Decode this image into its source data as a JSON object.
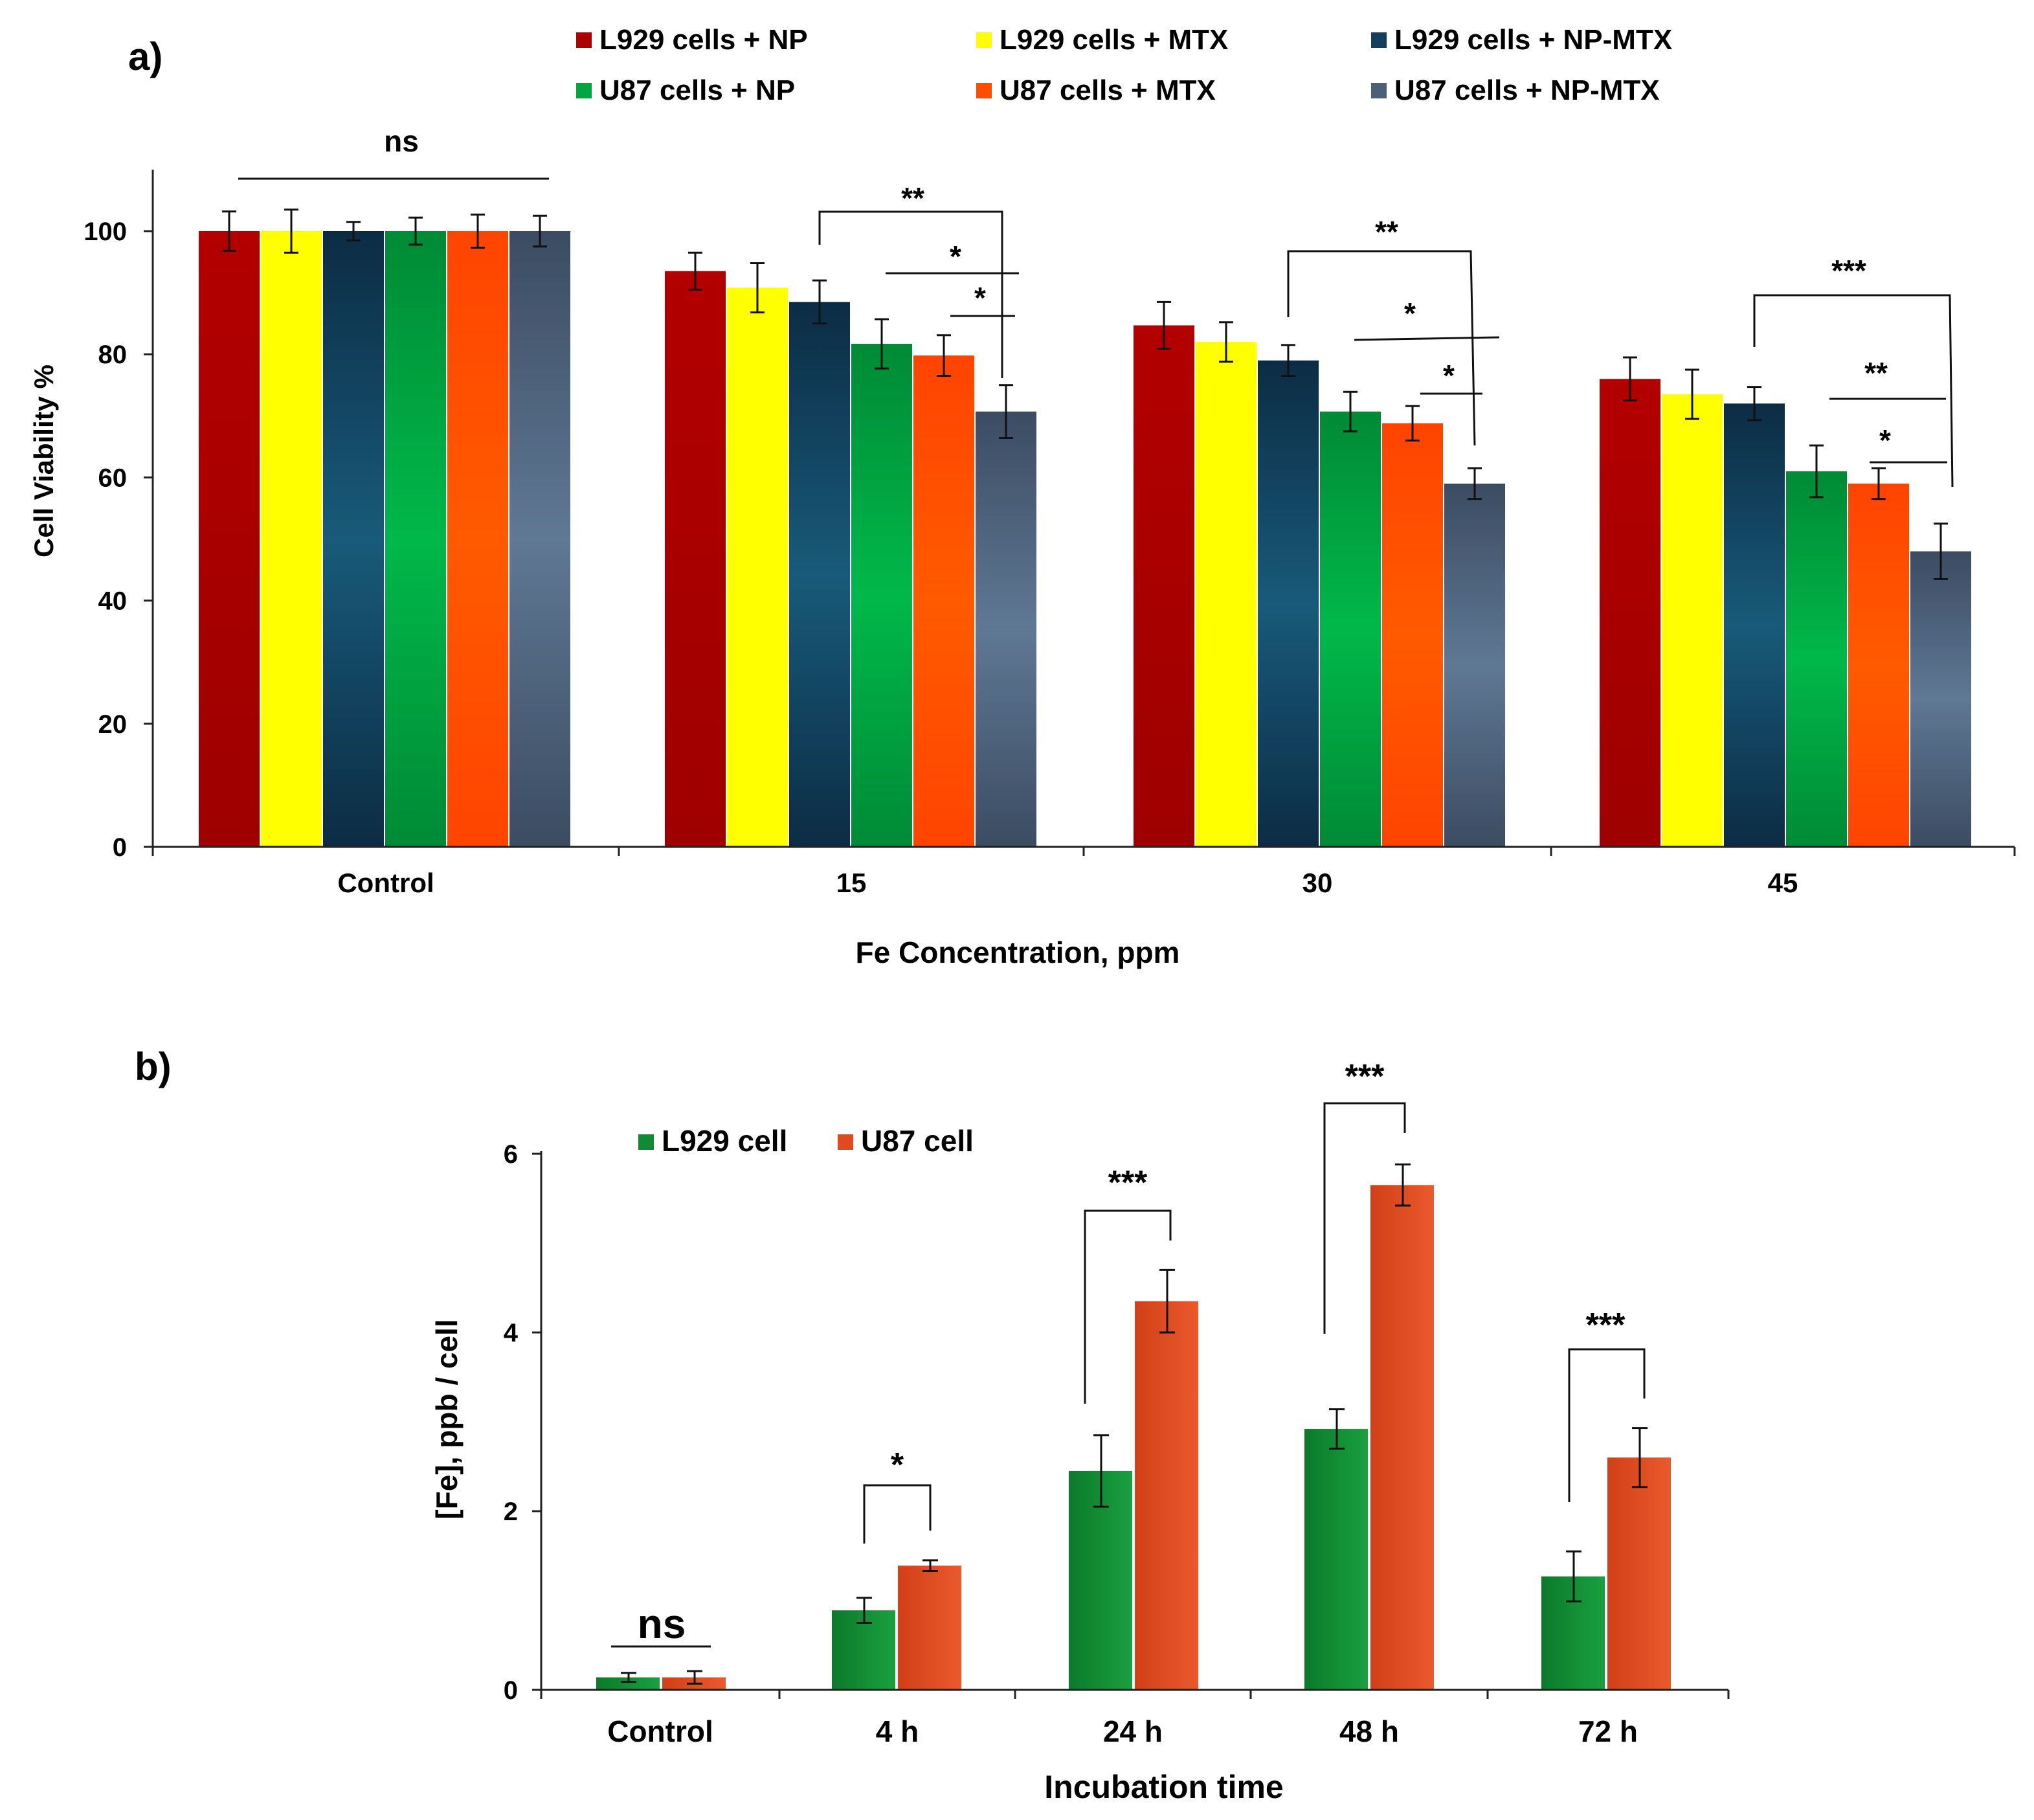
{
  "panel_a": {
    "label": "a)",
    "legend": [
      {
        "name": "L929 cells + NP",
        "color": "#ab0000"
      },
      {
        "name": "L929 cells + MTX",
        "color": "#ffff00"
      },
      {
        "name": "L929 cells + NP-MTX",
        "color": "#133f5c"
      },
      {
        "name": "U87 cells + NP",
        "color": "#00a642"
      },
      {
        "name": "U87 cells + MTX",
        "color": "#ff4d00"
      },
      {
        "name": "U87 cells + NP-MTX",
        "color": "#4b6079"
      }
    ],
    "annotations": {
      "ns": "ns"
    }
  },
  "panel_b": {
    "label": "b)",
    "legend": [
      {
        "name": "L929 cell",
        "color": "#118a33"
      },
      {
        "name": "U87 cell",
        "color": "#e04a1f"
      }
    ],
    "annotations": {
      "ns": "ns"
    }
  },
  "chart_data": [
    {
      "type": "bar",
      "panel": "a)",
      "title": "",
      "xlabel": "Fe Concentration, ppm",
      "ylabel": "Cell Viability %",
      "ylim": [
        0,
        110
      ],
      "yticks": [
        0,
        20,
        40,
        60,
        80,
        100
      ],
      "categories": [
        "Control",
        "15",
        "30",
        "45"
      ],
      "series": [
        {
          "name": "L929 cells + NP",
          "color": "#ab0000",
          "values": [
            100,
            93.5,
            84.7,
            76
          ],
          "errors": [
            3.2,
            3,
            3.8,
            3.5
          ]
        },
        {
          "name": "L929 cells + MTX",
          "color": "#ffff00",
          "values": [
            100,
            90.8,
            82,
            73.5
          ],
          "errors": [
            3.5,
            4,
            3.2,
            4
          ]
        },
        {
          "name": "L929 cells + NP-MTX",
          "color": "#133f5c",
          "values": [
            100,
            88.5,
            79,
            72
          ],
          "errors": [
            1.5,
            3.5,
            2.5,
            2.7
          ]
        },
        {
          "name": "U87 cells + NP",
          "color": "#00a642",
          "values": [
            100,
            81.7,
            70.7,
            61
          ],
          "errors": [
            2.2,
            4,
            3.2,
            4.2
          ]
        },
        {
          "name": "U87 cells + MTX",
          "color": "#ff4d00",
          "values": [
            100,
            79.8,
            68.8,
            59
          ],
          "errors": [
            2.7,
            3.3,
            2.8,
            2.5
          ]
        },
        {
          "name": "U87 cells + NP-MTX",
          "color": "#4b6079",
          "values": [
            100,
            70.7,
            59,
            48
          ],
          "errors": [
            2.5,
            4.3,
            2.5,
            4.5
          ]
        }
      ],
      "significance": [
        {
          "label": "ns",
          "group": 0
        },
        {
          "label": "**",
          "group": 1
        },
        {
          "label": "*",
          "group": 1
        },
        {
          "label": "*",
          "group": 1
        },
        {
          "label": "**",
          "group": 2
        },
        {
          "label": "*",
          "group": 2
        },
        {
          "label": "*",
          "group": 2
        },
        {
          "label": "***",
          "group": 3
        },
        {
          "label": "**",
          "group": 3
        },
        {
          "label": "*",
          "group": 3
        }
      ],
      "legend_position": "top"
    },
    {
      "type": "bar",
      "panel": "b)",
      "title": "",
      "xlabel": "Incubation time",
      "ylabel": "[Fe], ppb / cell",
      "ylim": [
        0,
        6
      ],
      "yticks": [
        0,
        2,
        4,
        6
      ],
      "categories": [
        "Control",
        "4 h",
        "24 h",
        "48 h",
        "72 h"
      ],
      "series": [
        {
          "name": "L929 cell",
          "color": "#118a33",
          "values": [
            0.14,
            0.89,
            2.45,
            2.92,
            1.27
          ],
          "errors": [
            0.05,
            0.14,
            0.4,
            0.22,
            0.28
          ]
        },
        {
          "name": "U87 cell",
          "color": "#e04a1f",
          "values": [
            0.14,
            1.39,
            4.35,
            5.65,
            2.6
          ],
          "errors": [
            0.07,
            0.06,
            0.35,
            0.23,
            0.33
          ]
        }
      ],
      "significance": [
        {
          "label": "ns",
          "group": 0
        },
        {
          "label": "*",
          "group": 1
        },
        {
          "label": "***",
          "group": 2
        },
        {
          "label": "***",
          "group": 3
        },
        {
          "label": "***",
          "group": 4
        }
      ],
      "legend_position": "top-left"
    }
  ]
}
